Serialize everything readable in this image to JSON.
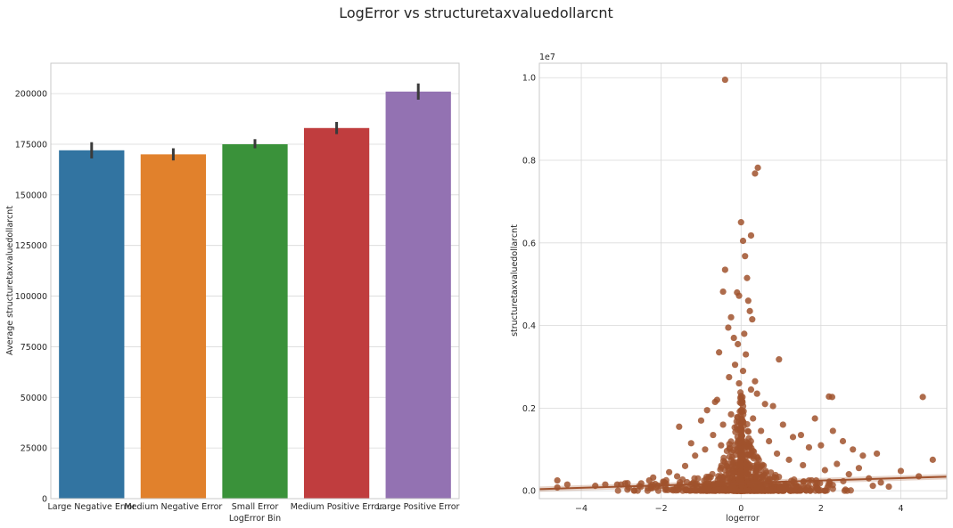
{
  "figure": {
    "title": "LogError vs structuretaxvaluedollarcnt"
  },
  "chart_data": [
    {
      "type": "bar",
      "xlabel": "LogError Bin",
      "ylabel": "Average structuretaxvaluedollarcnt",
      "ylim": [
        0,
        215000
      ],
      "yticks": [
        0,
        25000,
        50000,
        75000,
        100000,
        125000,
        150000,
        175000,
        200000
      ],
      "grid": true,
      "categories": [
        "Large Negative Error",
        "Medium Negative Error",
        "Small Error",
        "Medium Positive Error",
        "Large Positive Error"
      ],
      "values": [
        172000,
        170000,
        175000,
        183000,
        201000
      ],
      "ci_low": [
        168000,
        167000,
        173000,
        180000,
        197000
      ],
      "ci_high": [
        176000,
        173000,
        177500,
        186000,
        205000
      ],
      "colors": [
        "#3274a1",
        "#e1812c",
        "#3a923a",
        "#c03d3e",
        "#9372b2"
      ],
      "errorbar_color": "#3a3a3a"
    },
    {
      "type": "scatter",
      "xlabel": "logerror",
      "ylabel": "structuretaxvaluedollarcnt",
      "xlim": [
        -5.05,
        5.15
      ],
      "ylim": [
        -0.19,
        10.35
      ],
      "xticks": [
        -4,
        -2,
        0,
        2,
        4
      ],
      "yticks": [
        0.0,
        0.2,
        0.4,
        0.6,
        0.8,
        1.0
      ],
      "ytick_labels": [
        "0.0",
        "0.2",
        "0.4",
        "0.6",
        "0.8",
        "1.0"
      ],
      "y_multiplier_label": "1e7",
      "grid": true,
      "point_color": "#a0522d",
      "regression_line": {
        "x": [
          -5.05,
          5.15
        ],
        "y": [
          0.04,
          0.34
        ],
        "color": "#a0522d"
      },
      "points": [
        [
          -0.4,
          9.95
        ],
        [
          0.42,
          7.82
        ],
        [
          0.35,
          7.68
        ],
        [
          0.0,
          6.5
        ],
        [
          0.25,
          6.18
        ],
        [
          0.05,
          6.05
        ],
        [
          0.1,
          5.68
        ],
        [
          -0.4,
          5.35
        ],
        [
          0.15,
          5.15
        ],
        [
          -0.45,
          4.82
        ],
        [
          -0.1,
          4.8
        ],
        [
          -0.05,
          4.72
        ],
        [
          0.18,
          4.6
        ],
        [
          0.22,
          4.35
        ],
        [
          -0.25,
          4.2
        ],
        [
          0.28,
          4.15
        ],
        [
          -0.32,
          3.95
        ],
        [
          0.08,
          3.8
        ],
        [
          -0.18,
          3.7
        ],
        [
          0.95,
          3.18
        ],
        [
          -0.08,
          3.55
        ],
        [
          -0.55,
          3.35
        ],
        [
          0.12,
          3.3
        ],
        [
          -0.15,
          3.05
        ],
        [
          0.05,
          2.9
        ],
        [
          -0.3,
          2.75
        ],
        [
          0.35,
          2.65
        ],
        [
          -0.05,
          2.6
        ],
        [
          2.2,
          2.28
        ],
        [
          2.28,
          2.27
        ],
        [
          4.55,
          2.27
        ],
        [
          -0.6,
          2.2
        ],
        [
          0.4,
          2.35
        ],
        [
          0.6,
          2.1
        ],
        [
          -0.65,
          2.15
        ],
        [
          0.8,
          2.05
        ],
        [
          -0.85,
          1.95
        ],
        [
          0.25,
          2.45
        ],
        [
          1.05,
          1.6
        ],
        [
          1.85,
          1.75
        ],
        [
          -1.0,
          1.7
        ],
        [
          1.3,
          1.3
        ],
        [
          -1.55,
          1.55
        ],
        [
          2.3,
          1.45
        ],
        [
          1.5,
          1.35
        ],
        [
          2.55,
          1.2
        ],
        [
          -1.25,
          1.15
        ],
        [
          2.8,
          1.0
        ],
        [
          3.4,
          0.9
        ],
        [
          3.05,
          0.85
        ],
        [
          1.7,
          1.05
        ],
        [
          2.0,
          1.1
        ],
        [
          4.8,
          0.75
        ],
        [
          4.0,
          0.48
        ],
        [
          4.45,
          0.35
        ],
        [
          -0.9,
          1.0
        ],
        [
          -1.4,
          0.6
        ],
        [
          -1.8,
          0.45
        ],
        [
          -2.2,
          0.32
        ],
        [
          -2.3,
          0.25
        ],
        [
          -2.5,
          0.18
        ],
        [
          -2.9,
          0.18
        ],
        [
          -3.1,
          0.15
        ],
        [
          -3.4,
          0.15
        ],
        [
          -3.65,
          0.12
        ],
        [
          -4.35,
          0.15
        ],
        [
          -4.6,
          0.25
        ],
        [
          -4.6,
          0.08
        ],
        [
          -2.25,
          0.1
        ],
        [
          -1.95,
          0.22
        ],
        [
          2.7,
          0.4
        ],
        [
          3.2,
          0.3
        ],
        [
          3.5,
          0.2
        ],
        [
          2.95,
          0.55
        ],
        [
          2.4,
          0.65
        ],
        [
          2.1,
          0.5
        ],
        [
          1.55,
          0.62
        ],
        [
          1.2,
          0.75
        ],
        [
          0.7,
          1.2
        ],
        [
          0.5,
          1.45
        ],
        [
          -0.7,
          1.35
        ],
        [
          -0.45,
          1.6
        ],
        [
          -0.25,
          1.85
        ],
        [
          0.3,
          1.75
        ],
        [
          -1.15,
          0.85
        ],
        [
          -1.6,
          0.35
        ],
        [
          3.3,
          0.12
        ],
        [
          3.7,
          0.1
        ],
        [
          0.9,
          0.9
        ],
        [
          -0.5,
          1.1
        ]
      ]
    }
  ]
}
